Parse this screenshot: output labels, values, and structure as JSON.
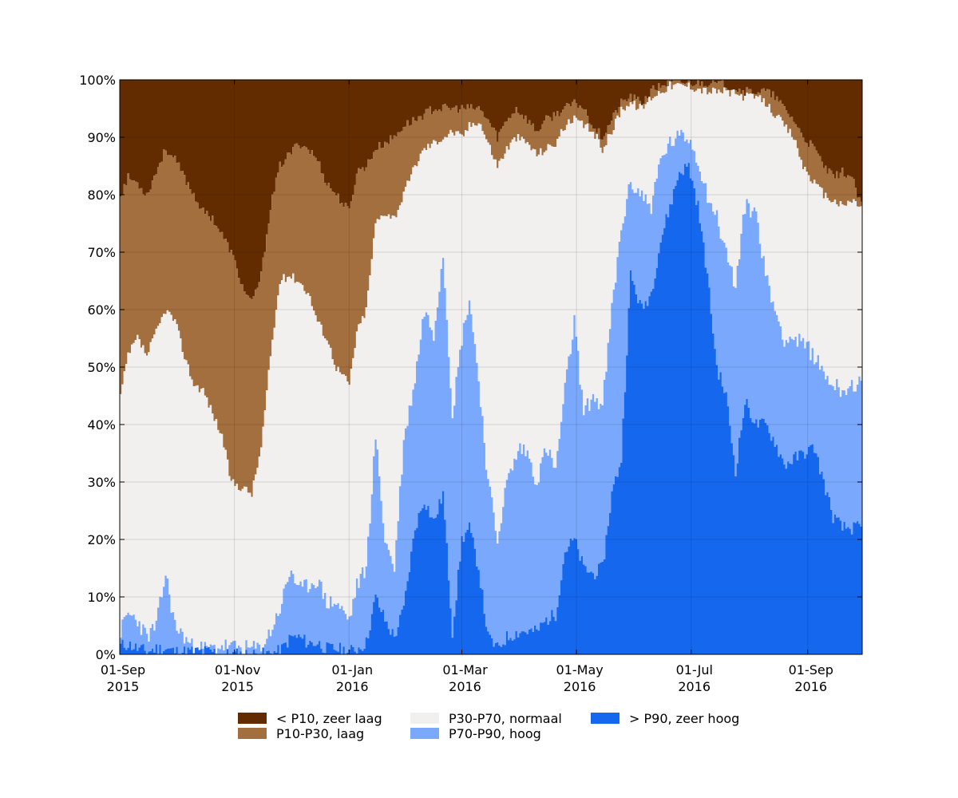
{
  "chart_data": {
    "type": "area",
    "stacked": true,
    "percent": true,
    "step": true,
    "x_range": [
      "2015-09-01",
      "2016-09-30"
    ],
    "ylim": [
      0,
      100
    ],
    "grid": true,
    "y_ticks": [
      "0%",
      "10%",
      "20%",
      "30%",
      "40%",
      "50%",
      "60%",
      "70%",
      "80%",
      "90%",
      "100%"
    ],
    "x_ticks": [
      {
        "date": "2015-09-01",
        "line1": "01-Sep",
        "line2": "2015"
      },
      {
        "date": "2015-11-01",
        "line1": "01-Nov",
        "line2": "2015"
      },
      {
        "date": "2016-01-01",
        "line1": "01-Jan",
        "line2": "2016"
      },
      {
        "date": "2016-03-01",
        "line1": "01-Mar",
        "line2": "2016"
      },
      {
        "date": "2016-05-01",
        "line1": "01-May",
        "line2": "2016"
      },
      {
        "date": "2016-07-01",
        "line1": "01-Jul",
        "line2": "2016"
      },
      {
        "date": "2016-09-01",
        "line1": "01-Sep",
        "line2": "2016"
      }
    ],
    "legend_position": "bottom",
    "series": [
      {
        "key": "zeer_hoog",
        "name": "> P90, zeer hoog",
        "color": "#1567EE"
      },
      {
        "key": "hoog",
        "name": "P70-P90, hoog",
        "color": "#7AA8FC"
      },
      {
        "key": "normaal",
        "name": "P30-P70, normaal",
        "color": "#F2F0EF"
      },
      {
        "key": "laag",
        "name": "P10-P30, laag",
        "color": "#A46F3E"
      },
      {
        "key": "zeer_laag",
        "name": "< P10, zeer laag",
        "color": "#632C00"
      }
    ],
    "boundaries_note": "cumulative tops of stacked bands (% of total), bottom-to-top",
    "boundaries": {
      "zeer_hoog": [
        [
          "2015-09-01",
          1.5
        ],
        [
          "2015-09-05",
          1.8
        ],
        [
          "2015-09-10",
          1
        ],
        [
          "2015-09-15",
          0.5
        ],
        [
          "2015-09-20",
          1
        ],
        [
          "2015-09-25",
          1
        ],
        [
          "2015-09-30",
          0.5
        ],
        [
          "2015-10-10",
          0.5
        ],
        [
          "2015-10-20",
          0.5
        ],
        [
          "2015-10-25",
          0
        ],
        [
          "2015-11-15",
          0
        ],
        [
          "2015-11-25",
          0.5
        ],
        [
          "2015-12-01",
          3
        ],
        [
          "2015-12-05",
          3
        ],
        [
          "2015-12-10",
          2
        ],
        [
          "2015-12-15",
          2
        ],
        [
          "2015-12-20",
          1
        ],
        [
          "2015-12-25",
          1
        ],
        [
          "2016-01-01",
          0.5
        ],
        [
          "2016-01-05",
          1
        ],
        [
          "2016-01-10",
          2
        ],
        [
          "2016-01-15",
          10
        ],
        [
          "2016-01-20",
          6
        ],
        [
          "2016-01-25",
          3
        ],
        [
          "2016-01-30",
          8
        ],
        [
          "2016-02-05",
          22
        ],
        [
          "2016-02-10",
          27
        ],
        [
          "2016-02-15",
          23
        ],
        [
          "2016-02-20",
          28
        ],
        [
          "2016-02-25",
          4
        ],
        [
          "2016-03-01",
          20
        ],
        [
          "2016-03-05",
          22
        ],
        [
          "2016-03-10",
          15
        ],
        [
          "2016-03-15",
          3
        ],
        [
          "2016-03-20",
          1
        ],
        [
          "2016-03-25",
          3
        ],
        [
          "2016-04-01",
          4
        ],
        [
          "2016-04-05",
          4
        ],
        [
          "2016-04-10",
          4
        ],
        [
          "2016-04-15",
          6
        ],
        [
          "2016-04-20",
          7
        ],
        [
          "2016-04-25",
          18
        ],
        [
          "2016-04-30",
          20
        ],
        [
          "2016-05-05",
          15
        ],
        [
          "2016-05-10",
          14
        ],
        [
          "2016-05-15",
          15
        ],
        [
          "2016-05-20",
          28
        ],
        [
          "2016-05-25",
          34
        ],
        [
          "2016-05-30",
          66
        ],
        [
          "2016-06-05",
          60
        ],
        [
          "2016-06-10",
          63
        ],
        [
          "2016-06-15",
          72
        ],
        [
          "2016-06-20",
          78
        ],
        [
          "2016-06-25",
          84
        ],
        [
          "2016-06-30",
          85
        ],
        [
          "2016-07-05",
          78
        ],
        [
          "2016-07-10",
          66
        ],
        [
          "2016-07-15",
          50
        ],
        [
          "2016-07-20",
          45
        ],
        [
          "2016-07-25",
          32
        ],
        [
          "2016-07-30",
          44
        ],
        [
          "2016-08-05",
          40
        ],
        [
          "2016-08-10",
          40
        ],
        [
          "2016-08-15",
          37
        ],
        [
          "2016-08-20",
          33
        ],
        [
          "2016-08-25",
          34
        ],
        [
          "2016-08-30",
          35
        ],
        [
          "2016-09-05",
          36
        ],
        [
          "2016-09-10",
          30
        ],
        [
          "2016-09-15",
          24
        ],
        [
          "2016-09-20",
          22
        ],
        [
          "2016-09-25",
          22
        ],
        [
          "2016-09-30",
          22
        ]
      ],
      "hoog": [
        [
          "2015-09-01",
          4
        ],
        [
          "2015-09-05",
          7
        ],
        [
          "2015-09-10",
          6
        ],
        [
          "2015-09-15",
          3
        ],
        [
          "2015-09-20",
          5
        ],
        [
          "2015-09-25",
          14
        ],
        [
          "2015-09-30",
          5
        ],
        [
          "2015-10-05",
          3
        ],
        [
          "2015-10-10",
          1
        ],
        [
          "2015-10-20",
          1
        ],
        [
          "2015-10-25",
          1.5
        ],
        [
          "2015-11-05",
          1
        ],
        [
          "2015-11-15",
          1
        ],
        [
          "2015-11-20",
          4
        ],
        [
          "2015-11-25",
          8
        ],
        [
          "2015-12-01",
          15
        ],
        [
          "2015-12-05",
          11
        ],
        [
          "2015-12-10",
          12
        ],
        [
          "2015-12-15",
          13
        ],
        [
          "2015-12-20",
          9
        ],
        [
          "2015-12-25",
          9
        ],
        [
          "2016-01-01",
          6
        ],
        [
          "2016-01-05",
          12
        ],
        [
          "2016-01-10",
          15
        ],
        [
          "2016-01-15",
          38
        ],
        [
          "2016-01-20",
          20
        ],
        [
          "2016-01-25",
          15
        ],
        [
          "2016-01-30",
          37
        ],
        [
          "2016-02-05",
          48
        ],
        [
          "2016-02-10",
          60
        ],
        [
          "2016-02-15",
          56
        ],
        [
          "2016-02-20",
          70
        ],
        [
          "2016-02-25",
          42
        ],
        [
          "2016-03-01",
          55
        ],
        [
          "2016-03-05",
          62
        ],
        [
          "2016-03-10",
          48
        ],
        [
          "2016-03-15",
          30
        ],
        [
          "2016-03-20",
          20
        ],
        [
          "2016-03-25",
          30
        ],
        [
          "2016-04-01",
          36
        ],
        [
          "2016-04-05",
          35
        ],
        [
          "2016-04-10",
          30
        ],
        [
          "2016-04-15",
          36
        ],
        [
          "2016-04-20",
          32
        ],
        [
          "2016-04-25",
          46
        ],
        [
          "2016-04-30",
          58
        ],
        [
          "2016-05-05",
          42
        ],
        [
          "2016-05-10",
          45
        ],
        [
          "2016-05-15",
          43
        ],
        [
          "2016-05-20",
          60
        ],
        [
          "2016-05-25",
          74
        ],
        [
          "2016-05-30",
          82
        ],
        [
          "2016-06-05",
          80
        ],
        [
          "2016-06-10",
          78
        ],
        [
          "2016-06-15",
          86
        ],
        [
          "2016-06-20",
          89
        ],
        [
          "2016-06-25",
          90
        ],
        [
          "2016-06-30",
          90
        ],
        [
          "2016-07-05",
          86
        ],
        [
          "2016-07-10",
          80
        ],
        [
          "2016-07-15",
          76
        ],
        [
          "2016-07-20",
          70
        ],
        [
          "2016-07-25",
          64
        ],
        [
          "2016-07-30",
          78
        ],
        [
          "2016-08-05",
          77
        ],
        [
          "2016-08-10",
          66
        ],
        [
          "2016-08-15",
          60
        ],
        [
          "2016-08-20",
          55
        ],
        [
          "2016-08-25",
          55
        ],
        [
          "2016-08-30",
          54
        ],
        [
          "2016-09-05",
          52
        ],
        [
          "2016-09-10",
          49
        ],
        [
          "2016-09-15",
          47
        ],
        [
          "2016-09-20",
          46
        ],
        [
          "2016-09-25",
          47
        ],
        [
          "2016-09-30",
          47
        ]
      ],
      "normaal": [
        [
          "2015-09-01",
          45
        ],
        [
          "2015-09-05",
          52
        ],
        [
          "2015-09-10",
          55
        ],
        [
          "2015-09-15",
          52
        ],
        [
          "2015-09-20",
          56
        ],
        [
          "2015-09-25",
          60
        ],
        [
          "2015-09-30",
          58
        ],
        [
          "2015-10-05",
          52
        ],
        [
          "2015-10-10",
          47
        ],
        [
          "2015-10-15",
          46
        ],
        [
          "2015-10-20",
          42
        ],
        [
          "2015-10-25",
          38
        ],
        [
          "2015-10-30",
          30
        ],
        [
          "2015-11-05",
          29
        ],
        [
          "2015-11-10",
          28
        ],
        [
          "2015-11-15",
          36
        ],
        [
          "2015-11-20",
          52
        ],
        [
          "2015-11-25",
          65
        ],
        [
          "2015-11-30",
          66
        ],
        [
          "2015-12-05",
          65
        ],
        [
          "2015-12-10",
          63
        ],
        [
          "2015-12-15",
          58
        ],
        [
          "2015-12-20",
          55
        ],
        [
          "2015-12-25",
          50
        ],
        [
          "2016-01-01",
          47
        ],
        [
          "2016-01-05",
          56
        ],
        [
          "2016-01-10",
          60
        ],
        [
          "2016-01-15",
          75
        ],
        [
          "2016-01-20",
          77
        ],
        [
          "2016-01-25",
          76
        ],
        [
          "2016-01-30",
          80
        ],
        [
          "2016-02-05",
          85
        ],
        [
          "2016-02-10",
          88
        ],
        [
          "2016-02-15",
          89
        ],
        [
          "2016-02-20",
          90
        ],
        [
          "2016-02-25",
          91
        ],
        [
          "2016-03-01",
          90
        ],
        [
          "2016-03-05",
          92
        ],
        [
          "2016-03-10",
          93
        ],
        [
          "2016-03-15",
          89
        ],
        [
          "2016-03-20",
          85
        ],
        [
          "2016-03-25",
          88
        ],
        [
          "2016-03-30",
          90
        ],
        [
          "2016-04-05",
          89
        ],
        [
          "2016-04-10",
          87
        ],
        [
          "2016-04-15",
          88
        ],
        [
          "2016-04-20",
          89
        ],
        [
          "2016-04-25",
          92
        ],
        [
          "2016-04-30",
          93
        ],
        [
          "2016-05-05",
          92
        ],
        [
          "2016-05-10",
          91
        ],
        [
          "2016-05-15",
          88
        ],
        [
          "2016-05-20",
          91
        ],
        [
          "2016-05-25",
          95
        ],
        [
          "2016-05-30",
          96
        ],
        [
          "2016-06-05",
          95
        ],
        [
          "2016-06-10",
          97
        ],
        [
          "2016-06-15",
          98
        ],
        [
          "2016-06-20",
          99
        ],
        [
          "2016-06-25",
          99
        ],
        [
          "2016-06-30",
          99
        ],
        [
          "2016-07-10",
          98
        ],
        [
          "2016-07-20",
          98
        ],
        [
          "2016-07-30",
          97
        ],
        [
          "2016-08-05",
          97
        ],
        [
          "2016-08-10",
          96
        ],
        [
          "2016-08-15",
          94
        ],
        [
          "2016-08-20",
          92
        ],
        [
          "2016-08-25",
          90
        ],
        [
          "2016-08-30",
          85
        ],
        [
          "2016-09-05",
          82
        ],
        [
          "2016-09-10",
          80
        ],
        [
          "2016-09-15",
          79
        ],
        [
          "2016-09-20",
          78
        ],
        [
          "2016-09-25",
          79
        ],
        [
          "2016-09-30",
          78
        ]
      ],
      "laag": [
        [
          "2015-09-01",
          80
        ],
        [
          "2015-09-05",
          83
        ],
        [
          "2015-09-10",
          82
        ],
        [
          "2015-09-15",
          80
        ],
        [
          "2015-09-20",
          84
        ],
        [
          "2015-09-25",
          88
        ],
        [
          "2015-09-30",
          86
        ],
        [
          "2015-10-05",
          83
        ],
        [
          "2015-10-10",
          80
        ],
        [
          "2015-10-15",
          77
        ],
        [
          "2015-10-20",
          76
        ],
        [
          "2015-10-25",
          73
        ],
        [
          "2015-10-30",
          70
        ],
        [
          "2015-11-05",
          64
        ],
        [
          "2015-11-10",
          61
        ],
        [
          "2015-11-15",
          66
        ],
        [
          "2015-11-20",
          78
        ],
        [
          "2015-11-25",
          85
        ],
        [
          "2015-11-30",
          87
        ],
        [
          "2015-12-05",
          89
        ],
        [
          "2015-12-10",
          88
        ],
        [
          "2015-12-15",
          86
        ],
        [
          "2015-12-20",
          82
        ],
        [
          "2015-12-25",
          80
        ],
        [
          "2016-01-01",
          77
        ],
        [
          "2016-01-05",
          84
        ],
        [
          "2016-01-10",
          85
        ],
        [
          "2016-01-15",
          88
        ],
        [
          "2016-01-20",
          89
        ],
        [
          "2016-01-25",
          90
        ],
        [
          "2016-01-30",
          92
        ],
        [
          "2016-02-05",
          93
        ],
        [
          "2016-02-10",
          94
        ],
        [
          "2016-02-15",
          95
        ],
        [
          "2016-02-20",
          95
        ],
        [
          "2016-02-25",
          95
        ],
        [
          "2016-03-01",
          95
        ],
        [
          "2016-03-10",
          95
        ],
        [
          "2016-03-15",
          93
        ],
        [
          "2016-03-20",
          90
        ],
        [
          "2016-03-25",
          93
        ],
        [
          "2016-03-30",
          95
        ],
        [
          "2016-04-05",
          93
        ],
        [
          "2016-04-10",
          91
        ],
        [
          "2016-04-15",
          93
        ],
        [
          "2016-04-20",
          94
        ],
        [
          "2016-04-25",
          95
        ],
        [
          "2016-05-01",
          96
        ],
        [
          "2016-05-05",
          95
        ],
        [
          "2016-05-10",
          92
        ],
        [
          "2016-05-15",
          90
        ],
        [
          "2016-05-20",
          93
        ],
        [
          "2016-05-25",
          96
        ],
        [
          "2016-05-30",
          97
        ],
        [
          "2016-06-05",
          96
        ],
        [
          "2016-06-10",
          98
        ],
        [
          "2016-06-15",
          99
        ],
        [
          "2016-06-20",
          99.5
        ],
        [
          "2016-06-30",
          99.5
        ],
        [
          "2016-07-10",
          99.5
        ],
        [
          "2016-07-20",
          99
        ],
        [
          "2016-07-30",
          98
        ],
        [
          "2016-08-05",
          98
        ],
        [
          "2016-08-10",
          98
        ],
        [
          "2016-08-15",
          97
        ],
        [
          "2016-08-20",
          95
        ],
        [
          "2016-08-25",
          93
        ],
        [
          "2016-08-30",
          90
        ],
        [
          "2016-09-05",
          88
        ],
        [
          "2016-09-10",
          85
        ],
        [
          "2016-09-15",
          83
        ],
        [
          "2016-09-20",
          84
        ],
        [
          "2016-09-25",
          83
        ],
        [
          "2016-09-30",
          78
        ]
      ]
    }
  },
  "legend": {
    "items": [
      {
        "label": "< P10, zeer laag",
        "color": "#632C00"
      },
      {
        "label": "P10-P30, laag",
        "color": "#A46F3E"
      },
      {
        "label": "P30-P70, normaal",
        "color": "#F2F0EF"
      },
      {
        "label": "P70-P90, hoog",
        "color": "#7AA8FC"
      },
      {
        "label": "> P90, zeer hoog",
        "color": "#1567EE"
      }
    ]
  }
}
